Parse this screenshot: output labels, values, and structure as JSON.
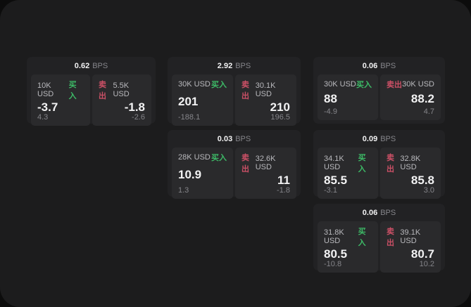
{
  "labels": {
    "bps_unit": "BPS",
    "buy": "买入",
    "sell": "卖出"
  },
  "colors": {
    "outer_bg": "#0c0c0c",
    "screen_bg": "#1c1c1d",
    "card_bg": "#222224",
    "panel_bg": "#2a2a2c",
    "text_primary": "#f2f2f3",
    "text_secondary": "#b9b9bd",
    "text_muted": "#85858a",
    "buy_green": "#3dbb67",
    "sell_red": "#cb5066"
  },
  "cards": [
    {
      "col": 0,
      "row": 0,
      "bps": "0.62",
      "buy": {
        "size": "10K USD",
        "price": "-3.7",
        "delta": "4.3"
      },
      "sell": {
        "size": "5.5K USD",
        "price": "-1.8",
        "delta": "-2.6"
      }
    },
    {
      "col": 1,
      "row": 0,
      "bps": "2.92",
      "buy": {
        "size": "30K USD",
        "price": "201",
        "delta": "-188.1"
      },
      "sell": {
        "size": "30.1K USD",
        "price": "210",
        "delta": "196.5"
      }
    },
    {
      "col": 2,
      "row": 0,
      "bps": "0.06",
      "buy": {
        "size": "30K USD",
        "price": "88",
        "delta": "-4.9"
      },
      "sell": {
        "size": "30K USD",
        "price": "88.2",
        "delta": "4.7"
      }
    },
    {
      "col": 1,
      "row": 1,
      "bps": "0.03",
      "buy": {
        "size": "28K USD",
        "price": "10.9",
        "delta": "1.3"
      },
      "sell": {
        "size": "32.6K USD",
        "price": "11",
        "delta": "-1.8"
      }
    },
    {
      "col": 2,
      "row": 1,
      "bps": "0.09",
      "buy": {
        "size": "34.1K USD",
        "price": "85.5",
        "delta": "-3.1"
      },
      "sell": {
        "size": "32.8K USD",
        "price": "85.8",
        "delta": "3.0"
      }
    },
    {
      "col": 2,
      "row": 2,
      "bps": "0.06",
      "buy": {
        "size": "31.8K USD",
        "price": "80.5",
        "delta": "-10.8"
      },
      "sell": {
        "size": "39.1K USD",
        "price": "80.7",
        "delta": "10.2"
      }
    }
  ]
}
